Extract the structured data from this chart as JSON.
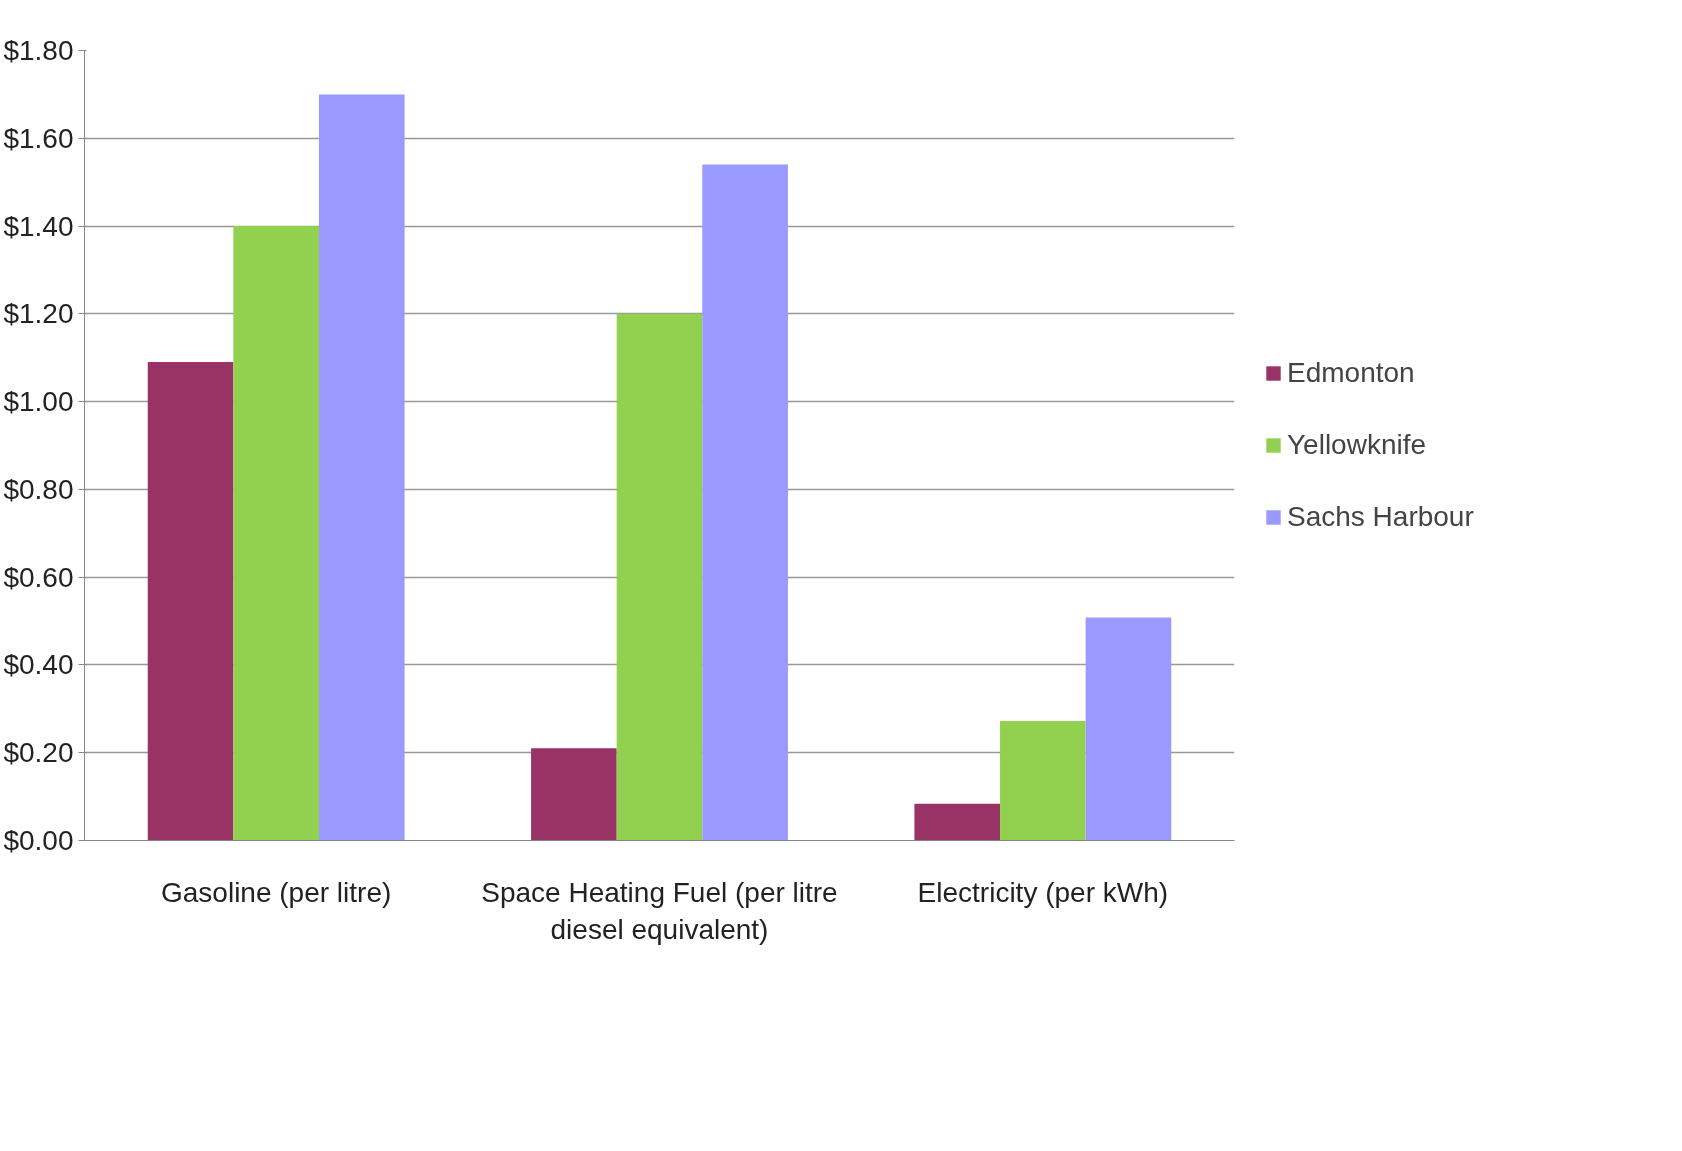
{
  "chart_data": {
    "type": "bar",
    "categories": [
      "Gasoline (per litre)",
      "Space Heating Fuel (per litre diesel equivalent)",
      "Electricity (per kWh)"
    ],
    "series": [
      {
        "name": "Edmonton",
        "color": "#993366",
        "values": [
          1.09,
          0.21,
          0.084
        ]
      },
      {
        "name": "Yellowknife",
        "color": "#92d050",
        "values": [
          1.4,
          1.2,
          0.272
        ]
      },
      {
        "name": "Sachs Harbour",
        "color": "#9999ff",
        "values": [
          1.7,
          1.54,
          0.508
        ]
      }
    ],
    "ylim": [
      0,
      1.8
    ],
    "yticks": [
      {
        "value": 0,
        "label": "$0.00"
      },
      {
        "value": 0.2,
        "label": "$0.20"
      },
      {
        "value": 0.4,
        "label": "$0.40"
      },
      {
        "value": 0.6,
        "label": "$0.60"
      },
      {
        "value": 0.8,
        "label": "$0.80"
      },
      {
        "value": 1.0,
        "label": "$1.00"
      },
      {
        "value": 1.2,
        "label": "$1.20"
      },
      {
        "value": 1.4,
        "label": "$1.40"
      },
      {
        "value": 1.6,
        "label": "$1.60"
      },
      {
        "value": 1.8,
        "label": "$1.80"
      }
    ],
    "grid": "y",
    "legend": "right"
  }
}
